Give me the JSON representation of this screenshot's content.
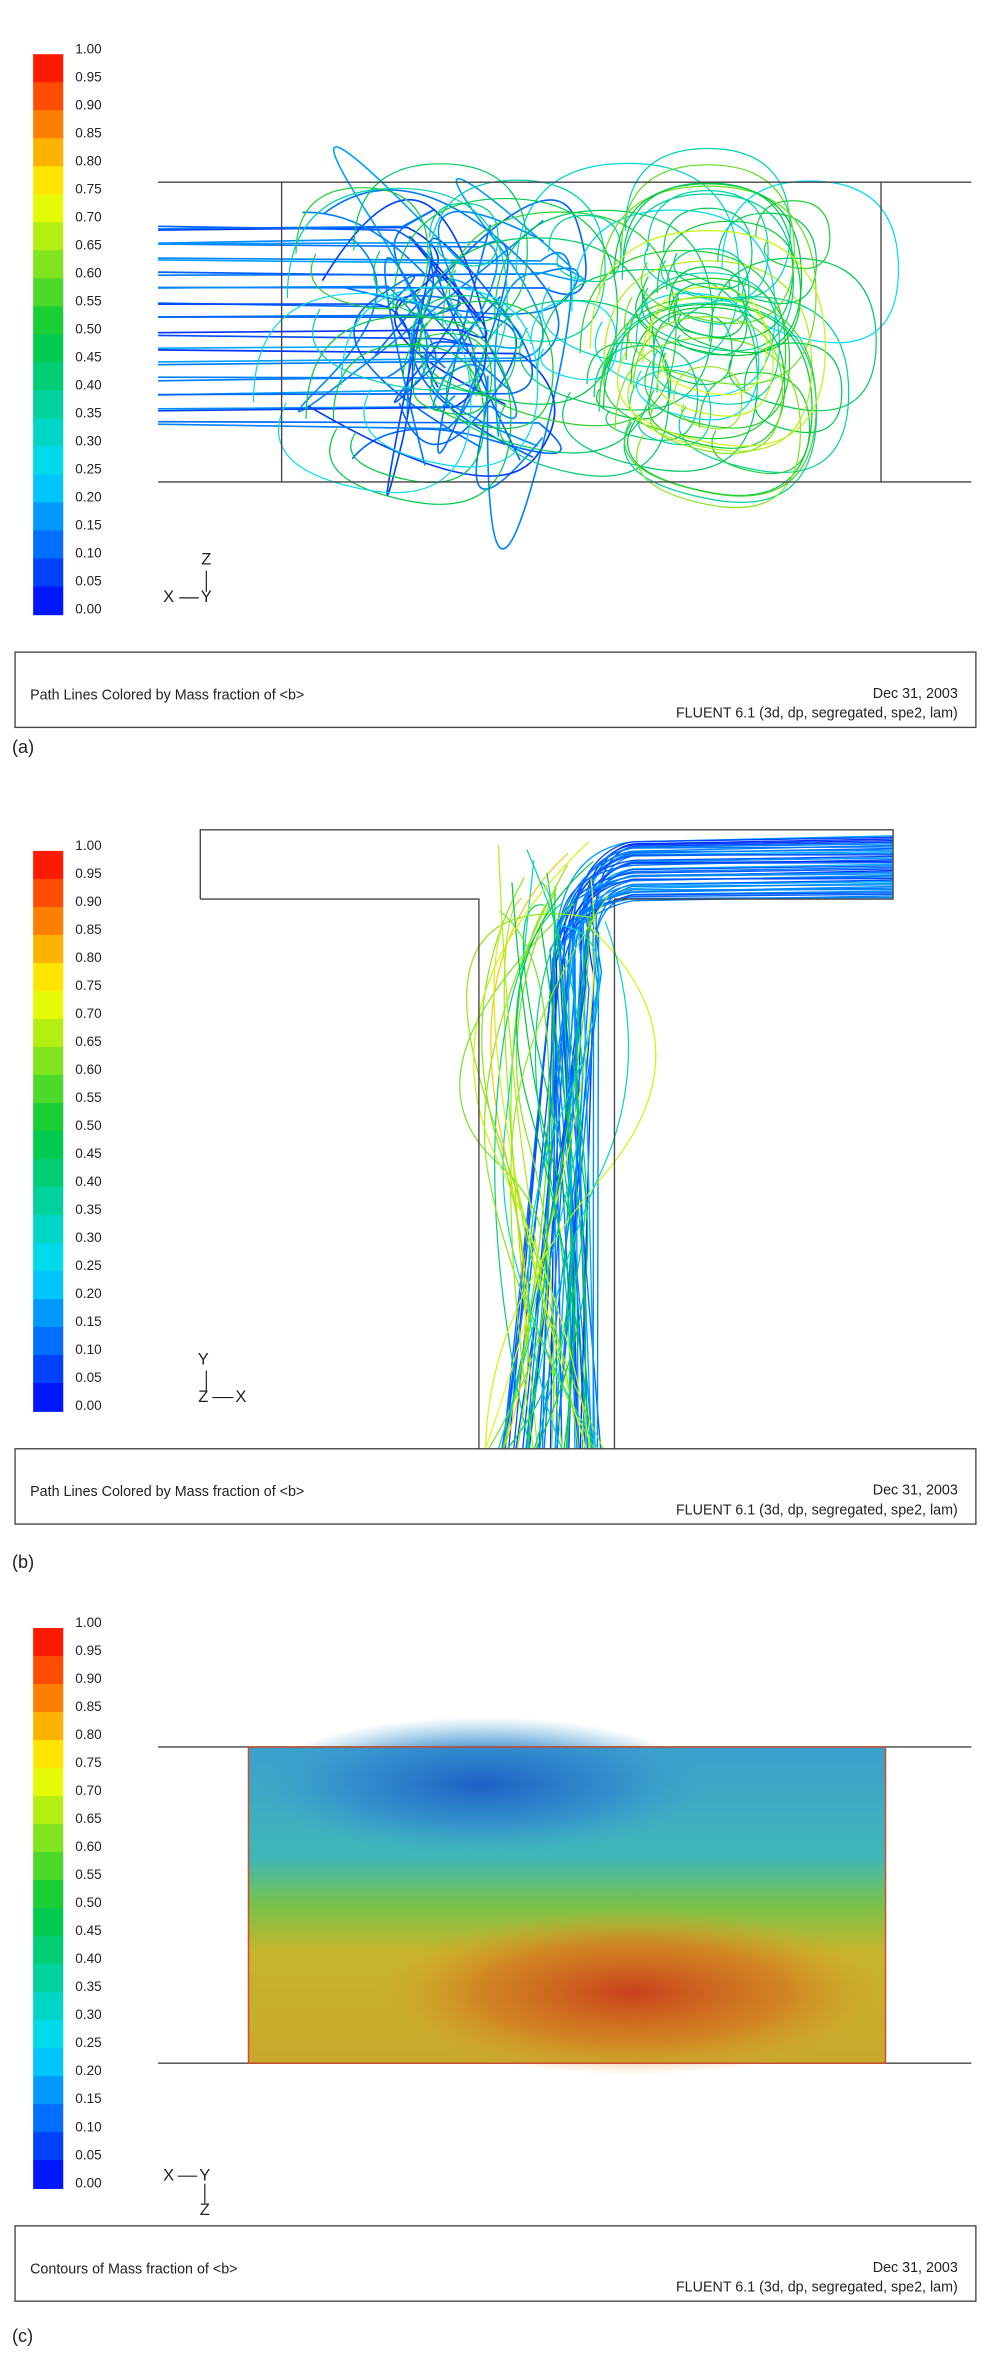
{
  "panels": [
    {
      "label": "(a)",
      "colorbar": [
        "1.00",
        "0.95",
        "0.90",
        "0.85",
        "0.80",
        "0.75",
        "0.70",
        "0.65",
        "0.60",
        "0.55",
        "0.50",
        "0.45",
        "0.40",
        "0.35",
        "0.30",
        "0.25",
        "0.20",
        "0.15",
        "0.10",
        "0.05",
        "0.00"
      ],
      "triad": [
        "Z",
        "X",
        "Y"
      ],
      "caption": {
        "left": "Path Lines Colored by Mass fraction of <b>",
        "date": "Dec 31, 2003",
        "solver": "FLUENT 6.1 (3d, dp, segregated, spe2, lam)"
      }
    },
    {
      "label": "(b)",
      "colorbar": [
        "1.00",
        "0.95",
        "0.90",
        "0.85",
        "0.80",
        "0.75",
        "0.70",
        "0.65",
        "0.60",
        "0.55",
        "0.50",
        "0.45",
        "0.40",
        "0.35",
        "0.30",
        "0.25",
        "0.20",
        "0.15",
        "0.10",
        "0.05",
        "0.00"
      ],
      "triad": [
        "Y",
        "Z",
        "X"
      ],
      "caption": {
        "left": "Path Lines Colored by Mass fraction of <b>",
        "date": "Dec 31, 2003",
        "solver": "FLUENT 6.1 (3d, dp, segregated, spe2, lam)"
      }
    },
    {
      "label": "(c)",
      "colorbar": [
        "1.00",
        "0.95",
        "0.90",
        "0.85",
        "0.80",
        "0.75",
        "0.70",
        "0.65",
        "0.60",
        "0.55",
        "0.50",
        "0.45",
        "0.40",
        "0.35",
        "0.30",
        "0.25",
        "0.20",
        "0.15",
        "0.10",
        "0.05",
        "0.00"
      ],
      "triad": [
        "X",
        "Y",
        "Z"
      ],
      "caption": {
        "left": "Contours of Mass fraction of <b>",
        "date": "Dec 31, 2003",
        "solver": "FLUENT 6.1 (3d, dp, segregated, spe2, lam)"
      }
    }
  ]
}
